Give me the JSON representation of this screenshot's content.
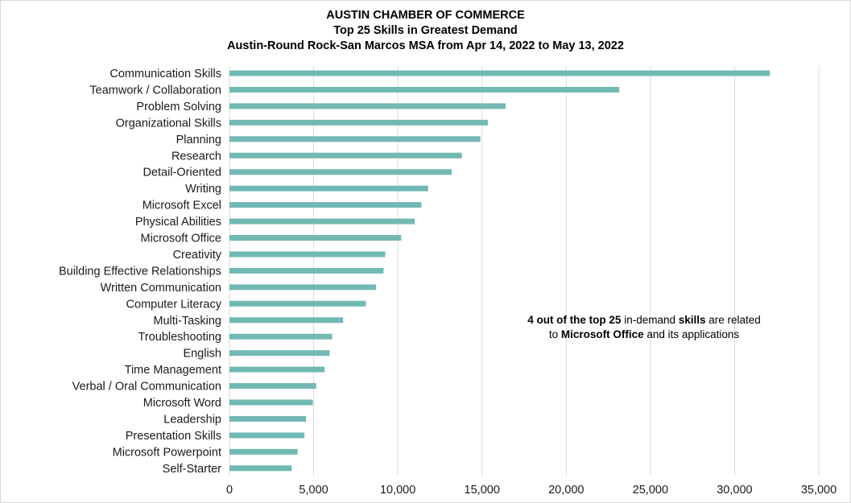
{
  "chart_data": {
    "type": "bar",
    "orientation": "horizontal",
    "title": "AUSTIN CHAMBER OF COMMERCE",
    "subtitle": "Top 25 Skills in Greatest Demand",
    "subtitle2": "Austin-Round Rock-San Marcos MSA from Apr 14, 2022 to May 13, 2022",
    "categories": [
      "Communication Skills",
      "Teamwork / Collaboration",
      "Problem Solving",
      "Organizational Skills",
      "Planning",
      "Research",
      "Detail-Oriented",
      "Writing",
      "Microsoft Excel",
      "Physical Abilities",
      "Microsoft Office",
      "Creativity",
      "Building Effective Relationships",
      "Written Communication",
      "Computer Literacy",
      "Multi-Tasking",
      "Troubleshooting",
      "English",
      "Time Management",
      "Verbal / Oral Communication",
      "Microsoft Word",
      "Leadership",
      "Presentation Skills",
      "Microsoft Powerpoint",
      "Self-Starter"
    ],
    "values": [
      32100,
      23150,
      16400,
      15350,
      14900,
      13800,
      13200,
      11800,
      11400,
      11000,
      10200,
      9250,
      9150,
      8700,
      8100,
      6750,
      6100,
      5950,
      5650,
      5150,
      4950,
      4550,
      4450,
      4050,
      3700
    ],
    "xlim": [
      0,
      35000
    ],
    "xticks": [
      0,
      5000,
      10000,
      15000,
      20000,
      25000,
      30000,
      35000
    ],
    "xtick_labels": [
      "0",
      "5,000",
      "10,000",
      "15,000",
      "20,000",
      "25,000",
      "30,000",
      "35,000"
    ],
    "grid": "vertical",
    "legend": "none",
    "bar_color": "#72b9b4",
    "grid_color": "#d9d9d9"
  },
  "annotation": {
    "line1_bold_a": "4 out of the top 25",
    "line1_text_a": " in-demand ",
    "line1_bold_b": "skills",
    "line1_text_b": " are related",
    "line2_text_a": "to ",
    "line2_bold": "Microsoft Office",
    "line2_text_b": " and its applications"
  }
}
